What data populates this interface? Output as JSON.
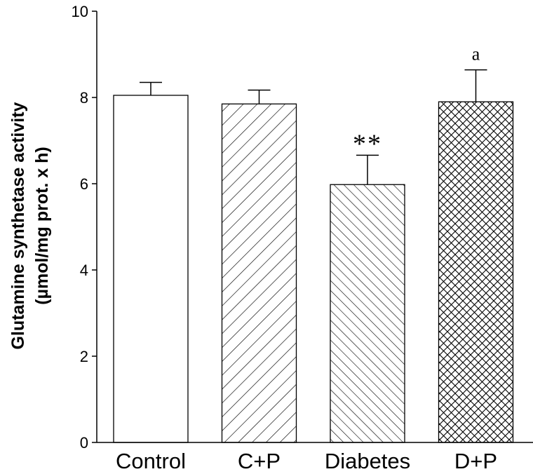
{
  "chart_data": {
    "type": "bar",
    "categories": [
      "Control",
      "C+P",
      "Diabetes",
      "D+P"
    ],
    "values": [
      8.05,
      7.85,
      5.98,
      7.9
    ],
    "error": [
      0.3,
      0.32,
      0.68,
      0.74
    ],
    "patterns": [
      "none",
      "diag-forward-sparse",
      "diag-back-dense",
      "crosshatch"
    ],
    "annotations": [
      "",
      "",
      "**",
      "a"
    ],
    "ylabel_line1": "Glutamine synthetase activity",
    "ylabel_line2": "(µmol/mg prot. x h)",
    "ylim": [
      0,
      10
    ],
    "yticks": [
      "0",
      "2",
      "4",
      "6",
      "8",
      "10"
    ],
    "grid": false
  }
}
